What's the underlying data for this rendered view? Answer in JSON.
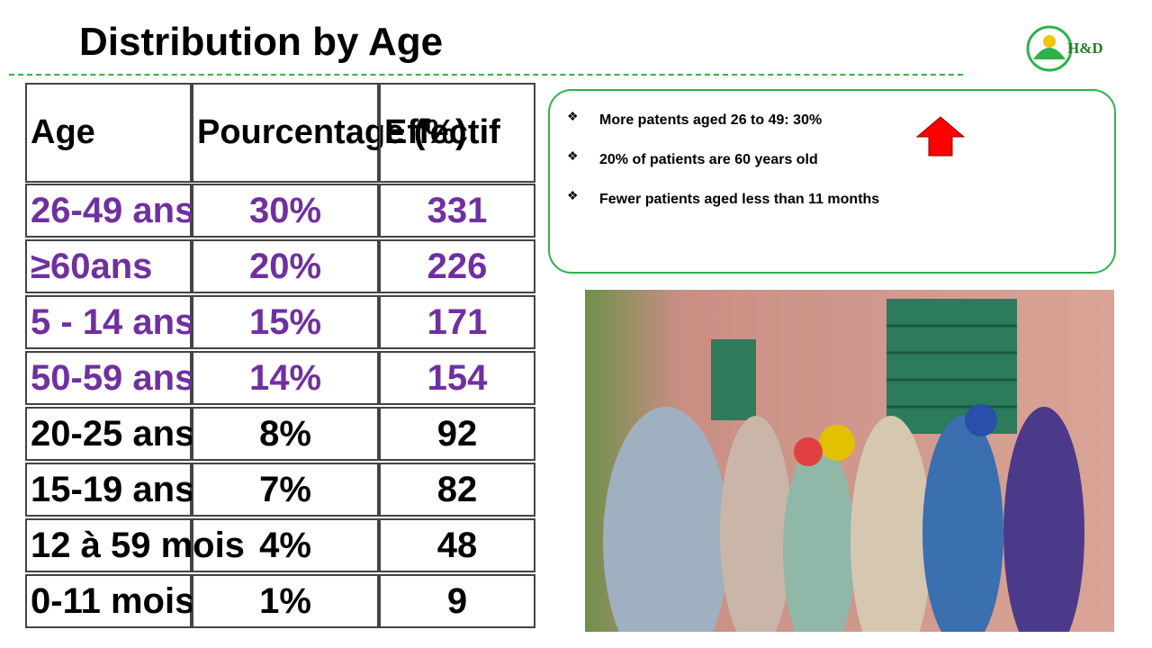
{
  "header": {
    "title": "Distribution by Age",
    "logo": "H&D"
  },
  "table": {
    "columns": [
      "Age",
      "Pourcentage (%)",
      "Effectif"
    ],
    "rows": [
      [
        "26-49 ans",
        "30%",
        "331"
      ],
      [
        "≥60ans",
        "20%",
        "226"
      ],
      [
        "5 - 14 ans",
        "15%",
        "171"
      ],
      [
        "50-59 ans",
        "14%",
        "154"
      ],
      [
        "20-25 ans",
        "8%",
        "92"
      ],
      [
        "15-19 ans",
        "7%",
        "82"
      ],
      [
        "12 à 59 mois",
        "4%",
        "48"
      ],
      [
        "0-11 mois",
        "1%",
        "9"
      ]
    ]
  },
  "notes": [
    "More patents aged 26 to 49: 30%",
    "20% of patients are 60 years old",
    "Fewer patients aged less than 11 months"
  ]
}
